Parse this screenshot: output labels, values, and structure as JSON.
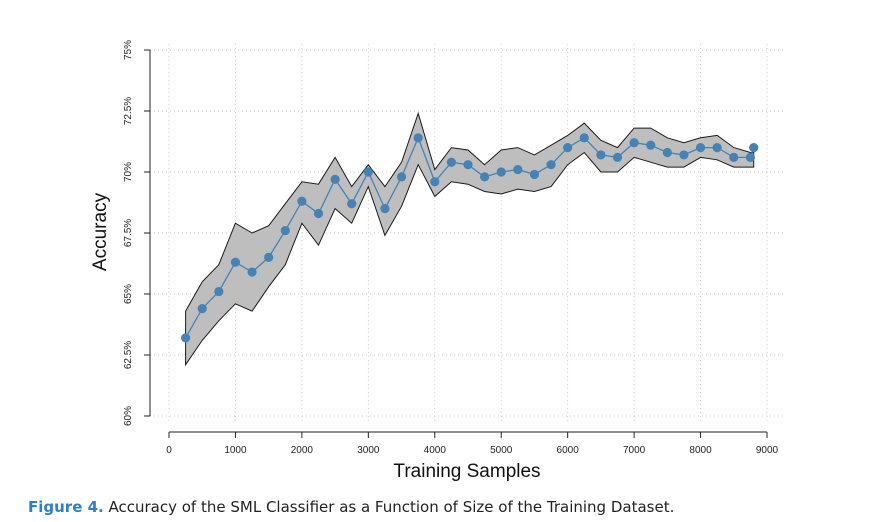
{
  "chart_data": {
    "type": "line",
    "title": "",
    "xlabel": "Training Samples",
    "ylabel": "Accuracy",
    "xlim": [
      0,
      9000
    ],
    "ylim": [
      60,
      75
    ],
    "x_ticks": [
      0,
      1000,
      2000,
      3000,
      4000,
      5000,
      6000,
      7000,
      8000,
      9000
    ],
    "x_tick_labels": [
      "0",
      "1000",
      "2000",
      "3000",
      "4000",
      "5000",
      "6000",
      "7000",
      "8000",
      "9000"
    ],
    "y_ticks": [
      60,
      62.5,
      65,
      67.5,
      70,
      72.5,
      75
    ],
    "y_tick_labels": [
      "60%",
      "62.5%",
      "65%",
      "67.5%",
      "70%",
      "72.5%",
      "75%"
    ],
    "grid": true,
    "series": [
      {
        "x": [
          250,
          500,
          750,
          1000,
          1250,
          1500,
          1750,
          2000,
          2250,
          2500,
          2750,
          3000,
          3250,
          3500,
          3750,
          4000,
          4250,
          4500,
          4750,
          5000,
          5250,
          5500,
          5750,
          6000,
          6250,
          6500,
          6750,
          7000,
          7250,
          7500,
          7750,
          8000,
          8250,
          8500,
          8750,
          8800
        ],
        "values": [
          63.2,
          64.4,
          65.1,
          66.3,
          65.9,
          66.5,
          67.6,
          68.8,
          68.3,
          69.7,
          68.7,
          70.0,
          68.5,
          69.8,
          71.4,
          69.6,
          70.4,
          70.3,
          69.8,
          70.0,
          70.1,
          69.9,
          70.3,
          71.0,
          71.4,
          70.7,
          70.6,
          71.2,
          71.1,
          70.8,
          70.7,
          71.0,
          71.0,
          70.6,
          70.6,
          71.0
        ],
        "upper": [
          64.3,
          65.5,
          66.2,
          67.9,
          67.5,
          67.8,
          68.7,
          69.6,
          69.5,
          70.6,
          69.4,
          70.3,
          69.4,
          70.4,
          72.4,
          70.1,
          71.0,
          70.9,
          70.3,
          70.9,
          71.0,
          70.7,
          71.1,
          71.5,
          72.0,
          71.3,
          71.0,
          71.8,
          71.8,
          71.4,
          71.2,
          71.4,
          71.5,
          71.0,
          70.8,
          70.8
        ],
        "lower": [
          62.1,
          63.1,
          63.9,
          64.6,
          64.3,
          65.3,
          66.2,
          67.9,
          67.0,
          68.5,
          67.9,
          69.4,
          67.4,
          68.6,
          70.3,
          69.0,
          69.6,
          69.5,
          69.2,
          69.1,
          69.3,
          69.2,
          69.4,
          70.3,
          70.8,
          70.0,
          70.0,
          70.6,
          70.4,
          70.2,
          70.2,
          70.6,
          70.5,
          70.2,
          70.2,
          70.2
        ],
        "line_color": "#4682b4",
        "band_color": "#bebebe"
      }
    ]
  },
  "caption": {
    "label": "Figure 4.",
    "text": " Accuracy of the SML Classifier as a Function of Size of the Training Dataset."
  }
}
